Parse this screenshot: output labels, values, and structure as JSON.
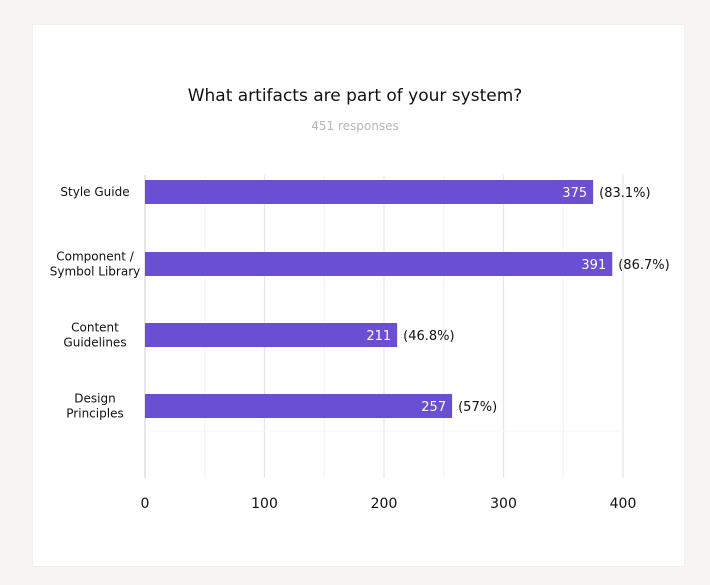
{
  "chart_data": {
    "type": "bar",
    "orientation": "horizontal",
    "title": "What artifacts are part of your system?",
    "subtitle": "451 responses",
    "categories": [
      [
        "Style Guide"
      ],
      [
        "Component /",
        "Symbol Library"
      ],
      [
        "Content",
        "Guidelines"
      ],
      [
        "Design",
        "Principles"
      ]
    ],
    "values": [
      375,
      391,
      211,
      257
    ],
    "percent_labels": [
      "(83.1%)",
      "(86.7%)",
      "(46.8%)",
      "(57%)"
    ],
    "xlim": [
      0,
      400
    ],
    "x_ticks": [
      0,
      100,
      200,
      300,
      400
    ],
    "minor_grid": [
      50,
      150,
      250,
      350
    ],
    "grid": true,
    "bar_color": "#6b4fd3",
    "grid_color": "#e6e6e6",
    "minor_grid_color": "#f2f2f2"
  }
}
